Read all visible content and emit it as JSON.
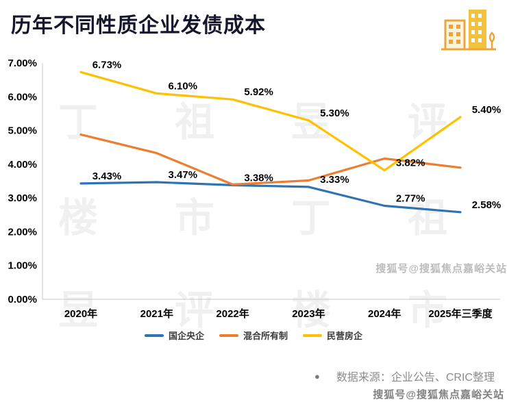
{
  "header": {
    "title": "历年不同性质企业发债成本"
  },
  "chart_data": {
    "type": "line",
    "title": "历年不同性质企业发债成本",
    "categories": [
      "2020年",
      "2021年",
      "2022年",
      "2023年",
      "2024年",
      "2025年三季度"
    ],
    "series": [
      {
        "name": "国企央企",
        "color": "#2E74B5",
        "values": [
          3.43,
          3.47,
          3.38,
          3.33,
          2.77,
          2.58
        ],
        "labels": [
          "3.43%",
          "3.47%",
          "3.38%",
          "3.33%",
          "2.77%",
          "2.58%"
        ]
      },
      {
        "name": "混合所有制",
        "color": "#ED7D31",
        "values": [
          4.88,
          4.33,
          3.4,
          3.52,
          4.17,
          3.9
        ],
        "labels": [
          null,
          null,
          null,
          null,
          null,
          null
        ]
      },
      {
        "name": "民营房企",
        "color": "#FFC000",
        "values": [
          6.73,
          6.1,
          5.92,
          5.3,
          3.82,
          5.4
        ],
        "labels": [
          "6.73%",
          "6.10%",
          "5.92%",
          "5.30%",
          "3.82%",
          "5.40%"
        ]
      }
    ],
    "ylim": [
      0,
      7
    ],
    "yticks": [
      "0.00%",
      "1.00%",
      "2.00%",
      "3.00%",
      "4.00%",
      "5.00%",
      "6.00%",
      "7.00%"
    ],
    "grid": false,
    "legend_position": "bottom"
  },
  "footer": {
    "bullet": "●",
    "source": "数据来源：企业公告、CRIC整理"
  },
  "watermarks": {
    "sohu": "搜狐号@搜狐焦点嘉峪关站",
    "brand": "丁祖昱评楼市"
  }
}
